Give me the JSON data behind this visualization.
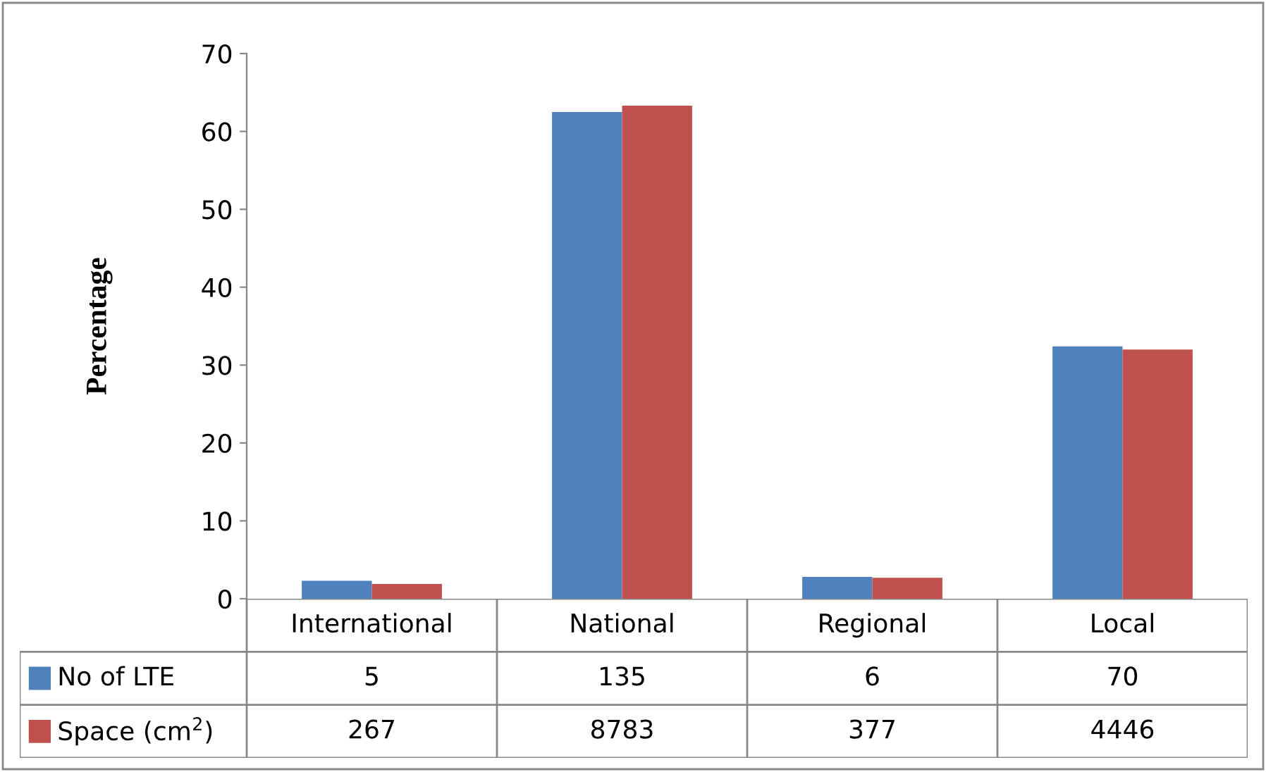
{
  "chart_data": {
    "type": "bar",
    "ylabel": "Percentage",
    "categories": [
      "International",
      "National",
      "Regional",
      "Local"
    ],
    "series": [
      {
        "name": "No of LTE",
        "color": "#4f81bd",
        "values": [
          2.3,
          62.5,
          2.8,
          32.4
        ]
      },
      {
        "name": "Space (cm$^{2}$)",
        "color": "#c0504d",
        "values": [
          1.9,
          63.3,
          2.7,
          32.0
        ]
      }
    ],
    "annotations": [
      "5",
      "135",
      "6",
      "70",
      "267",
      "8783",
      "377",
      "4446"
    ],
    "ylim": [
      0,
      70
    ],
    "yticks": [
      0,
      10,
      20,
      30,
      40,
      50,
      60,
      70
    ],
    "grid": false,
    "legend": "bottom left"
  }
}
